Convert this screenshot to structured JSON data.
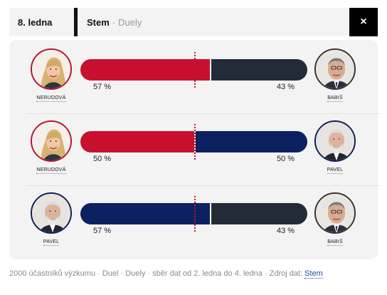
{
  "header": {
    "date": "8. ledna",
    "pollster": "Stem",
    "separator": "·",
    "subtitle": "Duely",
    "close_label": "×"
  },
  "colors": {
    "nerudova": "#c8102e",
    "babis": "#242b38",
    "pavel": "#0b2160",
    "midline": "#c4102b"
  },
  "duels": [
    {
      "left": {
        "name": "NERUDOVÁ",
        "share": 57,
        "label": "57 %",
        "color": "#c8102e",
        "avatar": "nerudova"
      },
      "right": {
        "name": "BABIŠ",
        "share": 43,
        "label": "43 %",
        "color": "#242b38",
        "avatar": "babis"
      }
    },
    {
      "left": {
        "name": "NERUDOVÁ",
        "share": 50,
        "label": "50 %",
        "color": "#c8102e",
        "avatar": "nerudova"
      },
      "right": {
        "name": "PAVEL",
        "share": 50,
        "label": "50 %",
        "color": "#0b2160",
        "avatar": "pavel"
      }
    },
    {
      "left": {
        "name": "PAVEL",
        "share": 57,
        "label": "57 %",
        "color": "#0b2160",
        "avatar": "pavel"
      },
      "right": {
        "name": "BABIŠ",
        "share": 43,
        "label": "43 %",
        "color": "#242b38",
        "avatar": "babis"
      }
    }
  ],
  "footer": {
    "text": "2000 účastníků výzkumu · Duel · Duely · sběr dat od 2. ledna do 4. ledna · Zdroj dat: ",
    "source_label": "Stem"
  }
}
